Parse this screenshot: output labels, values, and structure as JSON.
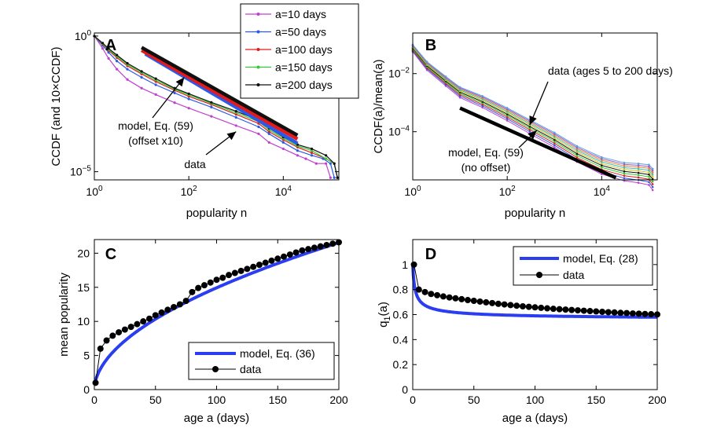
{
  "colors": {
    "model_blue": "#2a3df0",
    "data_black": "#000000",
    "a10": "#c040d0",
    "a50": "#2a5ae8",
    "a100": "#e41a1c",
    "a150": "#33cc33",
    "a200": "#111111",
    "other_ages": [
      "#e0c020",
      "#30c0c0",
      "#f08030",
      "#9060d0",
      "#60a0e0"
    ]
  },
  "chart_data": [
    {
      "panel": "A",
      "type": "line",
      "xscale": "log",
      "yscale": "log",
      "xlabel": "popularity n",
      "ylabel": "CCDF (and 10×CCDF)",
      "xlim": [
        1,
        150000
      ],
      "ylim": [
        5e-06,
        1.3
      ],
      "xticks": [
        {
          "v": 1,
          "b": "10",
          "e": "0"
        },
        {
          "v": 100,
          "b": "10",
          "e": "2"
        },
        {
          "v": 10000,
          "b": "10",
          "e": "4"
        }
      ],
      "yticks": [
        {
          "v": 1,
          "b": "10",
          "e": "0"
        },
        {
          "v": 1e-05,
          "b": "10",
          "e": "−5"
        }
      ],
      "legend_position": "top-right",
      "series": [
        {
          "name": "a=10 days",
          "color_key": "a10",
          "x": [
            1,
            1.5,
            2,
            3,
            5,
            10,
            20,
            50,
            100,
            300,
            1000,
            3000,
            5000,
            10000,
            20000,
            30000,
            50000,
            80000,
            100000
          ],
          "y": [
            1,
            0.35,
            0.15,
            0.06,
            0.025,
            0.012,
            0.007,
            0.0035,
            0.0022,
            0.0011,
            0.0005,
            0.00025,
            0.00012,
            7e-05,
            4e-05,
            3e-05,
            2e-05,
            2e-05,
            6e-06
          ]
        },
        {
          "name": "a=50 days",
          "color_key": "a50",
          "x": [
            1,
            1.5,
            2,
            3,
            5,
            10,
            20,
            50,
            100,
            300,
            1000,
            3000,
            5000,
            10000,
            20000,
            40000,
            70000,
            100000,
            120000
          ],
          "y": [
            1,
            0.45,
            0.25,
            0.12,
            0.06,
            0.03,
            0.016,
            0.008,
            0.0048,
            0.0024,
            0.001,
            0.00045,
            0.00025,
            0.00012,
            6e-05,
            4e-05,
            3e-05,
            2e-05,
            6e-06
          ]
        },
        {
          "name": "a=100 days",
          "color_key": "a100",
          "x": [
            1,
            1.5,
            2,
            3,
            5,
            10,
            20,
            50,
            100,
            300,
            1000,
            3000,
            5000,
            10000,
            20000,
            40000,
            80000,
            120000,
            140000
          ],
          "y": [
            1,
            0.5,
            0.3,
            0.16,
            0.08,
            0.04,
            0.021,
            0.01,
            0.006,
            0.003,
            0.0013,
            0.0006,
            0.0003,
            0.00015,
            8e-05,
            5e-05,
            3e-05,
            2e-05,
            6e-06
          ]
        },
        {
          "name": "a=150 days",
          "color_key": "a150",
          "x": [
            1,
            1.5,
            2,
            3,
            5,
            10,
            20,
            50,
            100,
            300,
            1000,
            3000,
            5000,
            10000,
            20000,
            40000,
            80000,
            120000,
            140000
          ],
          "y": [
            1,
            0.52,
            0.32,
            0.18,
            0.09,
            0.045,
            0.024,
            0.011,
            0.0068,
            0.0033,
            0.0015,
            0.0007,
            0.00035,
            0.00017,
            9e-05,
            6e-05,
            3e-05,
            2e-05,
            6e-06
          ]
        },
        {
          "name": "a=200 days",
          "color_key": "a200",
          "x": [
            1,
            1.5,
            2,
            3,
            5,
            10,
            20,
            50,
            100,
            300,
            1000,
            3000,
            5000,
            10000,
            20000,
            40000,
            80000,
            120000,
            140000
          ],
          "y": [
            1,
            0.55,
            0.35,
            0.2,
            0.1,
            0.05,
            0.027,
            0.012,
            0.0075,
            0.0036,
            0.0017,
            0.0008,
            0.0004,
            0.00019,
            0.0001,
            7e-05,
            4e-05,
            2e-05,
            6e-06
          ]
        }
      ],
      "model_lines": [
        {
          "name": "model a=50 (x10)",
          "color_key": "a50",
          "x": [
            12,
            20000
          ],
          "y": [
            0.22,
            0.00011
          ]
        },
        {
          "name": "model a=100 (x10)",
          "color_key": "a100",
          "x": [
            10,
            20000
          ],
          "y": [
            0.3,
            0.00016
          ]
        },
        {
          "name": "model a=200 (x10)",
          "color_key": "a200",
          "x": [
            10,
            20000
          ],
          "y": [
            0.38,
            0.00022
          ]
        }
      ],
      "annotations": [
        {
          "lines": [
            "model, Eq. (59)",
            "(offset x10)"
          ],
          "arrow_to": [
            80,
            0.03
          ]
        },
        {
          "lines": [
            "data"
          ],
          "arrow_to": [
            1000,
            0.0003
          ]
        }
      ]
    },
    {
      "panel": "B",
      "type": "line",
      "xscale": "log",
      "yscale": "log",
      "xlabel": "popularity n",
      "ylabel": "CCDF(a)/mean(a)",
      "xlim": [
        1,
        150000
      ],
      "ylim": [
        2.2e-06,
        0.25
      ],
      "xticks": [
        {
          "v": 1,
          "b": "10",
          "e": "0"
        },
        {
          "v": 100,
          "b": "10",
          "e": "2"
        },
        {
          "v": 10000,
          "b": "10",
          "e": "4"
        }
      ],
      "yticks": [
        {
          "v": 0.01,
          "b": "10",
          "e": "−2"
        },
        {
          "v": 0.0001,
          "b": "10",
          "e": "−4"
        }
      ],
      "data_curves": {
        "name": "data (ages 5 to 200 days)",
        "count": 10,
        "x": [
          1,
          2,
          5,
          10,
          30,
          100,
          300,
          1000,
          3000,
          10000,
          30000,
          60000,
          100000,
          120000
        ],
        "y": [
          0.08,
          0.02,
          0.006,
          0.0025,
          0.0012,
          0.00045,
          0.00017,
          6e-05,
          2e-05,
          8e-06,
          5e-06,
          4.5e-06,
          4e-06,
          2.8e-06
        ]
      },
      "model_line": {
        "name": "model, Eq. (59)",
        "x": [
          10,
          20000
        ],
        "y": [
          0.00065,
          2.6e-06
        ]
      },
      "annotations": [
        {
          "lines": [
            "data (ages 5 to 200 days)"
          ],
          "arrow_to": [
            300,
            0.00017
          ]
        },
        {
          "lines": [
            "model, Eq. (59)",
            "(no offset)"
          ],
          "arrow_to": [
            420,
            0.00011
          ]
        }
      ]
    },
    {
      "panel": "C",
      "type": "line",
      "xlabel": "age a (days)",
      "ylabel": "mean popularity",
      "xlim": [
        0,
        200
      ],
      "ylim": [
        0,
        22
      ],
      "xticks": [
        0,
        50,
        100,
        150,
        200
      ],
      "yticks": [
        0,
        5,
        10,
        15,
        20
      ],
      "legend_position": "bottom-right",
      "series": [
        {
          "name": "model, Eq. (36)",
          "color_key": "model_blue",
          "style": "thick-line",
          "formula": "1.3*a^0.53"
        },
        {
          "name": "data",
          "color_key": "data_black",
          "style": "line-dot",
          "x": [
            1,
            5,
            10,
            15,
            20,
            25,
            30,
            35,
            40,
            45,
            50,
            55,
            60,
            65,
            70,
            75,
            80,
            85,
            90,
            95,
            100,
            105,
            110,
            115,
            120,
            125,
            130,
            135,
            140,
            145,
            150,
            155,
            160,
            165,
            170,
            175,
            180,
            185,
            190,
            195,
            200
          ],
          "y": [
            1.0,
            6.0,
            7.2,
            7.9,
            8.4,
            8.8,
            9.2,
            9.6,
            10.0,
            10.4,
            10.9,
            11.3,
            11.7,
            12.1,
            12.5,
            13.0,
            14.3,
            14.9,
            15.3,
            15.7,
            16.1,
            16.4,
            16.8,
            17.1,
            17.4,
            17.7,
            18.0,
            18.3,
            18.6,
            18.9,
            19.2,
            19.5,
            19.8,
            20.1,
            20.4,
            20.6,
            20.8,
            21.0,
            21.2,
            21.4,
            21.6
          ]
        }
      ]
    },
    {
      "panel": "D",
      "type": "line",
      "xlabel": "age a (days)",
      "ylabel_main": "q",
      "ylabel_sub": "1",
      "ylabel_rest": "(a)",
      "xlim": [
        0,
        200
      ],
      "ylim": [
        0,
        1.2
      ],
      "xticks": [
        0,
        50,
        100,
        150,
        200
      ],
      "yticks": [
        0,
        0.2,
        0.4,
        0.6,
        0.8,
        1
      ],
      "legend_position": "top-right",
      "series": [
        {
          "name": "model, Eq. (28)",
          "color_key": "model_blue",
          "style": "thick-line",
          "formula": "0.555+0.445/(1+a)^0.55"
        },
        {
          "name": "data",
          "color_key": "data_black",
          "style": "line-dot",
          "x": [
            1,
            5,
            10,
            15,
            20,
            25,
            30,
            35,
            40,
            45,
            50,
            55,
            60,
            65,
            70,
            75,
            80,
            85,
            90,
            95,
            100,
            105,
            110,
            115,
            120,
            125,
            130,
            135,
            140,
            145,
            150,
            155,
            160,
            165,
            170,
            175,
            180,
            185,
            190,
            195,
            200
          ],
          "y": [
            1.0,
            0.8,
            0.78,
            0.765,
            0.755,
            0.745,
            0.737,
            0.73,
            0.723,
            0.716,
            0.71,
            0.704,
            0.698,
            0.692,
            0.686,
            0.681,
            0.676,
            0.671,
            0.666,
            0.662,
            0.658,
            0.654,
            0.65,
            0.646,
            0.643,
            0.64,
            0.637,
            0.634,
            0.631,
            0.628,
            0.625,
            0.622,
            0.619,
            0.617,
            0.614,
            0.612,
            0.609,
            0.607,
            0.605,
            0.603,
            0.601
          ]
        }
      ]
    }
  ]
}
